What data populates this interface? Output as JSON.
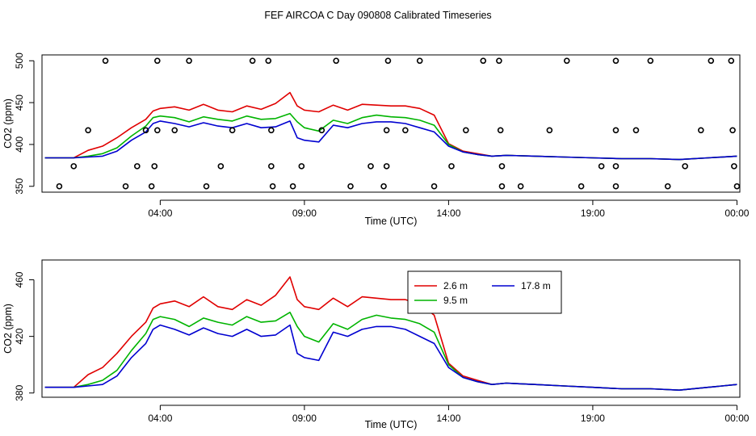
{
  "page_title": "FEF AIRCOA C  Day 090808  Calibrated Timeseries",
  "colors": {
    "s2_6": "#e00000",
    "s9_5": "#00b400",
    "s17_8": "#0000d0",
    "axis": "#000000"
  },
  "chart_data": [
    {
      "type": "line",
      "xlabel": "Time (UTC)",
      "ylabel": "CO2 (ppm)",
      "x_ticks": [
        "04:00",
        "09:00",
        "14:00",
        "19:00",
        "00:00"
      ],
      "x_tick_hours": [
        4,
        9,
        14,
        19,
        24
      ],
      "xlim_hours": [
        -0.1,
        24.1
      ],
      "y_ticks": [
        350,
        400,
        450,
        500
      ],
      "ylim": [
        343,
        507
      ],
      "series": [
        {
          "color": "s2_6",
          "x": [
            0,
            0.5,
            1,
            1.5,
            2,
            2.5,
            3,
            3.5,
            3.75,
            4,
            4.5,
            5,
            5.5,
            6,
            6.5,
            7,
            7.5,
            8,
            8.5,
            8.75,
            9,
            9.5,
            10,
            10.5,
            11,
            11.5,
            12,
            12.5,
            13,
            13.5,
            14,
            14.5,
            15,
            15.5,
            16,
            17,
            18,
            19,
            20,
            21,
            22,
            23,
            24
          ],
          "y": [
            384,
            384,
            384,
            393,
            398,
            408,
            420,
            430,
            440,
            443,
            445,
            441,
            448,
            441,
            439,
            446,
            442,
            449,
            462,
            446,
            441,
            439,
            447,
            441,
            448,
            447,
            446,
            446,
            443,
            435,
            401,
            392,
            389,
            386,
            387,
            386,
            385,
            384,
            383,
            383,
            382,
            384,
            386
          ]
        },
        {
          "color": "s9_5",
          "x": [
            0,
            0.5,
            1,
            1.5,
            2,
            2.5,
            3,
            3.5,
            3.75,
            4,
            4.5,
            5,
            5.5,
            6,
            6.5,
            7,
            7.5,
            8,
            8.5,
            8.75,
            9,
            9.5,
            10,
            10.5,
            11,
            11.5,
            12,
            12.5,
            13,
            13.5,
            14,
            14.5,
            15,
            15.5,
            16,
            17,
            18,
            19,
            20,
            21,
            22,
            23,
            24
          ],
          "y": [
            384,
            384,
            384,
            386,
            389,
            396,
            410,
            422,
            432,
            434,
            432,
            427,
            433,
            430,
            428,
            434,
            430,
            431,
            437,
            427,
            420,
            416,
            429,
            425,
            432,
            435,
            433,
            432,
            429,
            423,
            400,
            391,
            388,
            386,
            387,
            386,
            385,
            384,
            383,
            383,
            382,
            384,
            386
          ]
        },
        {
          "color": "s17_8",
          "x": [
            0,
            0.5,
            1,
            1.5,
            2,
            2.5,
            3,
            3.5,
            3.75,
            4,
            4.5,
            5,
            5.5,
            6,
            6.5,
            7,
            7.5,
            8,
            8.5,
            8.75,
            9,
            9.5,
            10,
            10.5,
            11,
            11.5,
            12,
            12.5,
            13,
            13.5,
            14,
            14.5,
            15,
            15.5,
            16,
            17,
            18,
            19,
            20,
            21,
            22,
            23,
            24
          ],
          "y": [
            384,
            384,
            384,
            385,
            386,
            392,
            405,
            415,
            425,
            428,
            425,
            421,
            426,
            422,
            420,
            425,
            420,
            421,
            428,
            408,
            405,
            403,
            423,
            420,
            425,
            427,
            427,
            425,
            420,
            415,
            398,
            391,
            388,
            386,
            387,
            386,
            385,
            384,
            383,
            383,
            382,
            384,
            386
          ]
        }
      ],
      "scatter_points": [
        [
          2.1,
          500
        ],
        [
          3.9,
          500
        ],
        [
          5,
          500
        ],
        [
          7.2,
          500
        ],
        [
          7.75,
          500
        ],
        [
          10.1,
          500
        ],
        [
          11.9,
          500
        ],
        [
          13,
          500
        ],
        [
          15.2,
          500
        ],
        [
          15.75,
          500
        ],
        [
          18.1,
          500
        ],
        [
          19.8,
          500
        ],
        [
          21,
          500
        ],
        [
          23.1,
          500
        ],
        [
          23.8,
          500
        ],
        [
          1.5,
          417
        ],
        [
          3.5,
          417
        ],
        [
          3.9,
          417
        ],
        [
          4.5,
          417
        ],
        [
          6.5,
          417
        ],
        [
          7.85,
          417
        ],
        [
          9.6,
          417
        ],
        [
          11.85,
          417
        ],
        [
          12.5,
          417
        ],
        [
          14.6,
          417
        ],
        [
          15.8,
          417
        ],
        [
          17.5,
          417
        ],
        [
          19.8,
          417
        ],
        [
          20.5,
          417
        ],
        [
          22.75,
          417
        ],
        [
          23.85,
          417
        ],
        [
          1,
          374
        ],
        [
          3.2,
          374
        ],
        [
          3.8,
          374
        ],
        [
          6.1,
          374
        ],
        [
          7.85,
          374
        ],
        [
          8.9,
          374
        ],
        [
          11.3,
          374
        ],
        [
          11.85,
          374
        ],
        [
          14.1,
          374
        ],
        [
          15.85,
          374
        ],
        [
          19.3,
          374
        ],
        [
          19.8,
          374
        ],
        [
          22.2,
          374
        ],
        [
          23.9,
          374
        ],
        [
          0.5,
          350
        ],
        [
          2.8,
          350
        ],
        [
          3.7,
          350
        ],
        [
          5.6,
          350
        ],
        [
          7.9,
          350
        ],
        [
          8.6,
          350
        ],
        [
          10.6,
          350
        ],
        [
          11.75,
          350
        ],
        [
          13.5,
          350
        ],
        [
          15.85,
          350
        ],
        [
          16.5,
          350
        ],
        [
          18.6,
          350
        ],
        [
          19.8,
          350
        ],
        [
          21.6,
          350
        ],
        [
          24,
          350
        ]
      ]
    },
    {
      "type": "line",
      "xlabel": "Time (UTC)",
      "ylabel": "CO2 (ppm)",
      "x_ticks": [
        "04:00",
        "09:00",
        "14:00",
        "19:00",
        "00:00"
      ],
      "x_tick_hours": [
        4,
        9,
        14,
        19,
        24
      ],
      "xlim_hours": [
        -0.1,
        24.1
      ],
      "y_ticks": [
        380,
        420,
        460
      ],
      "ylim": [
        377,
        474
      ],
      "legend": {
        "position": "top-center",
        "entries": [
          "2.6 m",
          "9.5 m",
          "17.8 m"
        ]
      },
      "series": [
        {
          "name": "2.6 m",
          "color": "s2_6",
          "x": [
            0,
            0.5,
            1,
            1.5,
            2,
            2.5,
            3,
            3.5,
            3.75,
            4,
            4.5,
            5,
            5.5,
            6,
            6.5,
            7,
            7.5,
            8,
            8.5,
            8.75,
            9,
            9.5,
            10,
            10.5,
            11,
            11.5,
            12,
            12.5,
            13,
            13.5,
            14,
            14.5,
            15,
            15.5,
            16,
            17,
            18,
            19,
            20,
            21,
            22,
            23,
            24
          ],
          "y": [
            384,
            384,
            384,
            393,
            398,
            408,
            420,
            430,
            440,
            443,
            445,
            441,
            448,
            441,
            439,
            446,
            442,
            449,
            462,
            446,
            441,
            439,
            447,
            441,
            448,
            447,
            446,
            446,
            443,
            435,
            401,
            392,
            389,
            386,
            387,
            386,
            385,
            384,
            383,
            383,
            382,
            384,
            386
          ]
        },
        {
          "name": "9.5 m",
          "color": "s9_5",
          "x": [
            0,
            0.5,
            1,
            1.5,
            2,
            2.5,
            3,
            3.5,
            3.75,
            4,
            4.5,
            5,
            5.5,
            6,
            6.5,
            7,
            7.5,
            8,
            8.5,
            8.75,
            9,
            9.5,
            10,
            10.5,
            11,
            11.5,
            12,
            12.5,
            13,
            13.5,
            14,
            14.5,
            15,
            15.5,
            16,
            17,
            18,
            19,
            20,
            21,
            22,
            23,
            24
          ],
          "y": [
            384,
            384,
            384,
            386,
            389,
            396,
            410,
            422,
            432,
            434,
            432,
            427,
            433,
            430,
            428,
            434,
            430,
            431,
            437,
            427,
            420,
            416,
            429,
            425,
            432,
            435,
            433,
            432,
            429,
            423,
            400,
            391,
            388,
            386,
            387,
            386,
            385,
            384,
            383,
            383,
            382,
            384,
            386
          ]
        },
        {
          "name": "17.8 m",
          "color": "s17_8",
          "x": [
            0,
            0.5,
            1,
            1.5,
            2,
            2.5,
            3,
            3.5,
            3.75,
            4,
            4.5,
            5,
            5.5,
            6,
            6.5,
            7,
            7.5,
            8,
            8.5,
            8.75,
            9,
            9.5,
            10,
            10.5,
            11,
            11.5,
            12,
            12.5,
            13,
            13.5,
            14,
            14.5,
            15,
            15.5,
            16,
            17,
            18,
            19,
            20,
            21,
            22,
            23,
            24
          ],
          "y": [
            384,
            384,
            384,
            385,
            386,
            392,
            405,
            415,
            425,
            428,
            425,
            421,
            426,
            422,
            420,
            425,
            420,
            421,
            428,
            408,
            405,
            403,
            423,
            420,
            425,
            427,
            427,
            425,
            420,
            415,
            398,
            391,
            388,
            386,
            387,
            386,
            385,
            384,
            383,
            383,
            382,
            384,
            386
          ]
        }
      ]
    }
  ]
}
